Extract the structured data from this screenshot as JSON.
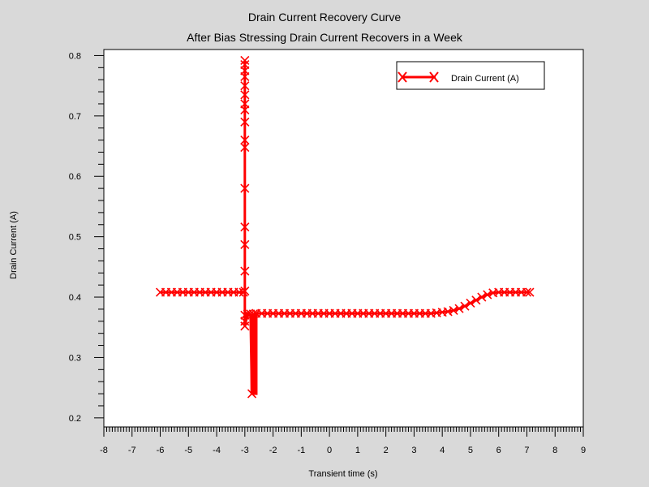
{
  "chart_data": {
    "type": "line",
    "title": "Drain Current Recovery Curve",
    "subtitle": "After Bias Stressing Drain Current Recovers in a Week",
    "xlabel": "Transient time (s)",
    "ylabel": "Drain Current (A)",
    "xlim": [
      -8,
      9
    ],
    "ylim": [
      0.185,
      0.81
    ],
    "xticks": [
      -8,
      -7,
      -6,
      -5,
      -4,
      -3,
      -2,
      -1,
      0,
      1,
      2,
      3,
      4,
      5,
      6,
      7,
      8,
      9
    ],
    "yticks": [
      0.2,
      0.3,
      0.4,
      0.5,
      0.6,
      0.7,
      0.8
    ],
    "legend_position": "top-right",
    "grid": false,
    "series": [
      {
        "name": "Drain Current (A)",
        "color": "#ff0000",
        "marker": "x",
        "points": [
          [
            -6.0,
            0.408
          ],
          [
            -5.8,
            0.408
          ],
          [
            -5.6,
            0.408
          ],
          [
            -5.4,
            0.408
          ],
          [
            -5.2,
            0.408
          ],
          [
            -5.0,
            0.408
          ],
          [
            -4.8,
            0.408
          ],
          [
            -4.6,
            0.408
          ],
          [
            -4.4,
            0.408
          ],
          [
            -4.2,
            0.408
          ],
          [
            -4.0,
            0.408
          ],
          [
            -3.8,
            0.408
          ],
          [
            -3.6,
            0.408
          ],
          [
            -3.4,
            0.408
          ],
          [
            -3.2,
            0.408
          ],
          [
            -3.05,
            0.408
          ],
          [
            -3.0,
            0.41
          ],
          [
            -3.0,
            0.443
          ],
          [
            -3.0,
            0.487
          ],
          [
            -3.0,
            0.516
          ],
          [
            -3.0,
            0.58
          ],
          [
            -3.0,
            0.648
          ],
          [
            -3.0,
            0.66
          ],
          [
            -3.0,
            0.69
          ],
          [
            -3.0,
            0.71
          ],
          [
            -3.0,
            0.72
          ],
          [
            -3.0,
            0.735
          ],
          [
            -3.0,
            0.75
          ],
          [
            -3.0,
            0.765
          ],
          [
            -3.0,
            0.775
          ],
          [
            -3.0,
            0.785
          ],
          [
            -3.0,
            0.792
          ],
          [
            -3.0,
            0.37
          ],
          [
            -3.0,
            0.36
          ],
          [
            -3.0,
            0.352
          ],
          [
            -2.9,
            0.372
          ],
          [
            -2.8,
            0.372
          ],
          [
            -2.75,
            0.24
          ],
          [
            -2.7,
            0.372
          ],
          [
            -2.6,
            0.373
          ],
          [
            -2.4,
            0.373
          ],
          [
            -2.2,
            0.373
          ],
          [
            -2.0,
            0.373
          ],
          [
            -1.8,
            0.373
          ],
          [
            -1.6,
            0.373
          ],
          [
            -1.4,
            0.373
          ],
          [
            -1.2,
            0.373
          ],
          [
            -1.0,
            0.373
          ],
          [
            -0.8,
            0.373
          ],
          [
            -0.6,
            0.373
          ],
          [
            -0.4,
            0.373
          ],
          [
            -0.2,
            0.373
          ],
          [
            0.0,
            0.373
          ],
          [
            0.2,
            0.373
          ],
          [
            0.4,
            0.373
          ],
          [
            0.6,
            0.373
          ],
          [
            0.8,
            0.373
          ],
          [
            1.0,
            0.373
          ],
          [
            1.2,
            0.373
          ],
          [
            1.4,
            0.373
          ],
          [
            1.6,
            0.373
          ],
          [
            1.8,
            0.373
          ],
          [
            2.0,
            0.373
          ],
          [
            2.2,
            0.373
          ],
          [
            2.4,
            0.373
          ],
          [
            2.6,
            0.373
          ],
          [
            2.8,
            0.373
          ],
          [
            3.0,
            0.373
          ],
          [
            3.2,
            0.373
          ],
          [
            3.4,
            0.373
          ],
          [
            3.6,
            0.373
          ],
          [
            3.8,
            0.374
          ],
          [
            4.0,
            0.375
          ],
          [
            4.2,
            0.376
          ],
          [
            4.4,
            0.378
          ],
          [
            4.6,
            0.381
          ],
          [
            4.8,
            0.385
          ],
          [
            5.0,
            0.39
          ],
          [
            5.2,
            0.395
          ],
          [
            5.4,
            0.4
          ],
          [
            5.6,
            0.404
          ],
          [
            5.8,
            0.407
          ],
          [
            6.0,
            0.408
          ],
          [
            6.2,
            0.408
          ],
          [
            6.4,
            0.408
          ],
          [
            6.6,
            0.408
          ],
          [
            6.8,
            0.408
          ],
          [
            7.0,
            0.408
          ],
          [
            7.1,
            0.408
          ]
        ],
        "band": {
          "x_start": -2.8,
          "x_end": -2.55,
          "y_low": 0.238,
          "y_high": 0.372
        }
      }
    ]
  }
}
